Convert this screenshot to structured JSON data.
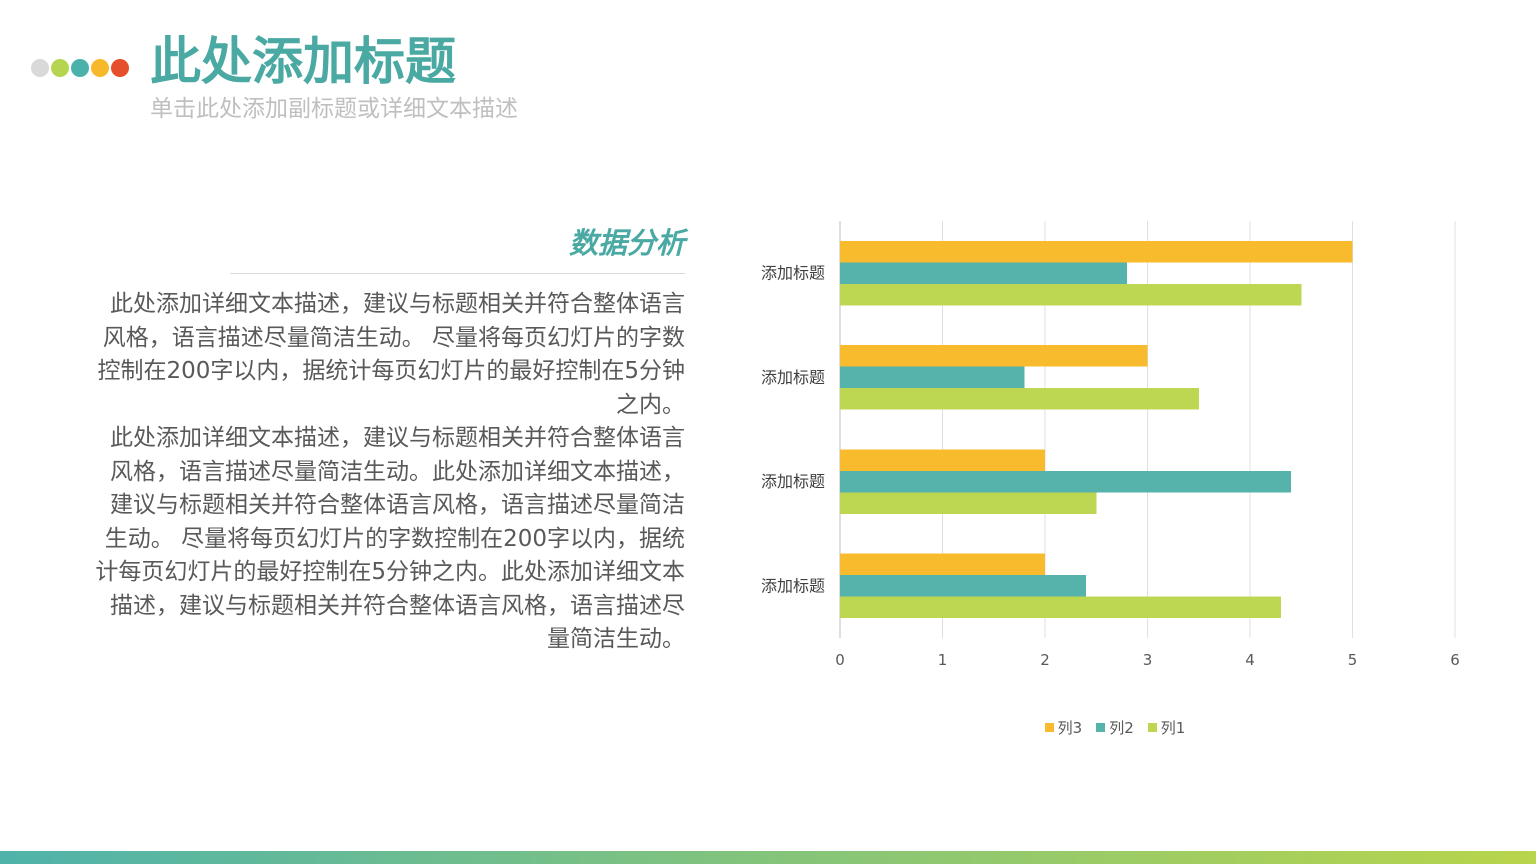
{
  "theme": {
    "accent": "#4aa9a3",
    "muted": "#bfbfbf",
    "text": "#595959",
    "bar_gradient": [
      "#4fb3ab",
      "#b8d54b"
    ]
  },
  "header": {
    "dots": [
      "#d9d9d9",
      "#b5d450",
      "#4bb1ab",
      "#f7b82c",
      "#e64f2b"
    ],
    "title": "此处添加标题",
    "subtitle": "单击此处添加副标题或详细文本描述"
  },
  "content": {
    "heading": "数据分析",
    "paragraphs": [
      [
        "此处添加详细文本描述，建议与标题相关并符合整体语言",
        "风格，语言描述尽量简洁生动。 尽量将每页幻灯片的字数",
        "控制在200字以内，据统计每页幻灯片的最好控制在5分钟",
        "之内。"
      ],
      [
        "此处添加详细文本描述，建议与标题相关并符合整体语言",
        "风格，语言描述尽量简洁生动。此处添加详细文本描述，",
        "建议与标题相关并符合整体语言风格，语言描述尽量简洁",
        "生动。 尽量将每页幻灯片的字数控制在200字以内，据统",
        "计每页幻灯片的最好控制在5分钟之内。此处添加详细文本",
        "描述，建议与标题相关并符合整体语言风格，语言描述尽",
        "量简洁生动。"
      ]
    ]
  },
  "chart_data": {
    "type": "bar",
    "orientation": "horizontal",
    "categories": [
      "添加标题",
      "添加标题",
      "添加标题",
      "添加标题"
    ],
    "series": [
      {
        "name": "列1",
        "color": "#bdd753",
        "values": [
          4.5,
          3.5,
          2.5,
          4.3
        ]
      },
      {
        "name": "列2",
        "color": "#55b3ac",
        "values": [
          2.8,
          1.8,
          4.4,
          2.4
        ]
      },
      {
        "name": "列3",
        "color": "#f9bb2e",
        "values": [
          5,
          3,
          2,
          2
        ]
      }
    ],
    "xlim": [
      0,
      6
    ],
    "xticks": [
      0,
      1,
      2,
      3,
      4,
      5,
      6
    ],
    "grid": true,
    "legend": "bottom"
  }
}
